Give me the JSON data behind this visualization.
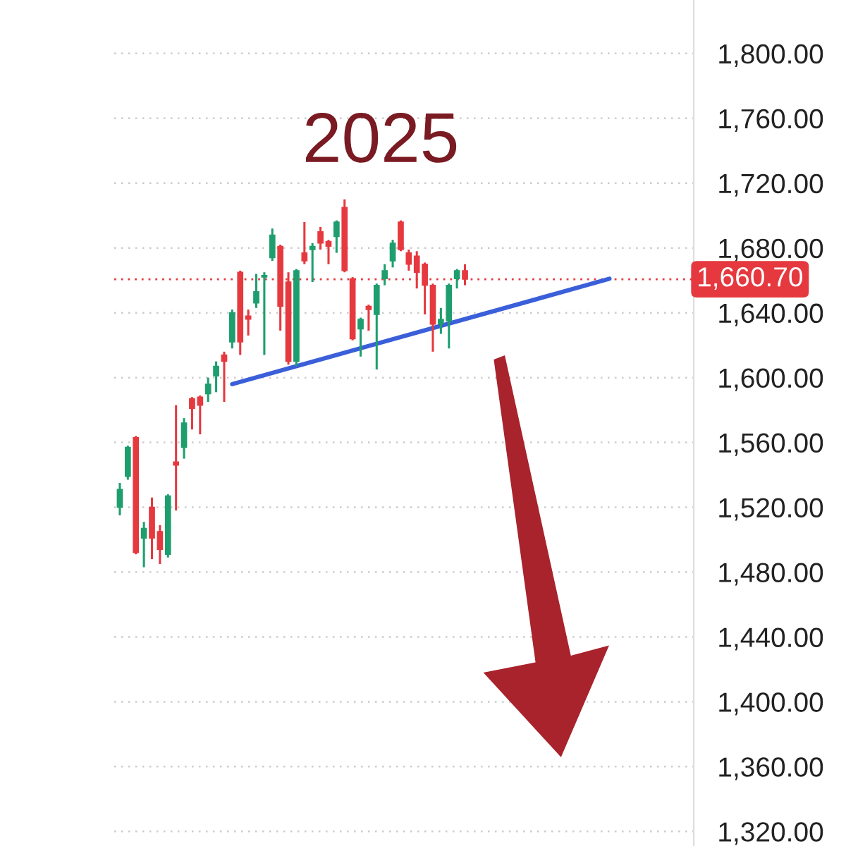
{
  "chart_data": {
    "type": "candlestick",
    "title": "2025",
    "categories": [
      null,
      null,
      null,
      null,
      null,
      null,
      null,
      null,
      null,
      null,
      null,
      null,
      null,
      null,
      null,
      null,
      null,
      null,
      null,
      null,
      null,
      null,
      null,
      null,
      null,
      null,
      null,
      null,
      null,
      null,
      null,
      null,
      null,
      null,
      null,
      null,
      null,
      null,
      null,
      null,
      null,
      null,
      null,
      null,
      null,
      null,
      null,
      null,
      null,
      null,
      null,
      null,
      null,
      null,
      null,
      null,
      null,
      null,
      null,
      null,
      null,
      null
    ],
    "ohlc": [
      [
        1520,
        1535,
        1515,
        1531
      ],
      [
        1539,
        1558,
        1537,
        1557
      ],
      [
        1563,
        1564,
        1491,
        1492
      ],
      [
        1501,
        1511,
        1483,
        1507
      ],
      [
        1520,
        1526,
        1488,
        1501
      ],
      [
        1505,
        1509,
        1485,
        1494
      ],
      [
        1491,
        1528,
        1489,
        1527
      ],
      [
        1548,
        1583,
        1518,
        1546
      ],
      [
        1557,
        1575,
        1550,
        1572
      ],
      [
        1587,
        1588,
        1568,
        1581
      ],
      [
        1588,
        1589,
        1565,
        1583
      ],
      [
        1590,
        1600,
        1585,
        1596
      ],
      [
        1601,
        1610,
        1591,
        1607
      ],
      [
        1614,
        1616,
        1585,
        1610
      ],
      [
        1622,
        1642,
        1618,
        1640
      ],
      [
        1665,
        1666,
        1614,
        1622
      ],
      [
        1638,
        1642,
        1626,
        1636
      ],
      [
        1646,
        1664,
        1643,
        1653
      ],
      [
        1662,
        1665,
        1614,
        1663
      ],
      [
        1674,
        1692,
        1672,
        1688
      ],
      [
        1681,
        1682,
        1629,
        1644
      ],
      [
        1659,
        1665,
        1608,
        1610
      ],
      [
        1610,
        1667,
        1607,
        1666
      ],
      [
        1677,
        1696,
        1670,
        1672
      ],
      [
        1679,
        1683,
        1659,
        1681
      ],
      [
        1690,
        1693,
        1679,
        1683
      ],
      [
        1684,
        1685,
        1670,
        1681
      ],
      [
        1687,
        1697,
        1677,
        1696
      ],
      [
        1705,
        1710,
        1665,
        1666
      ],
      [
        1661,
        1662,
        1623,
        1624
      ],
      [
        1630,
        1637,
        1613,
        1636
      ],
      [
        1644,
        1645,
        1629,
        1642
      ],
      [
        1639,
        1658,
        1605,
        1657
      ],
      [
        1661,
        1670,
        1657,
        1666
      ],
      [
        1672,
        1685,
        1668,
        1683
      ],
      [
        1696,
        1697,
        1678,
        1679
      ],
      [
        1677,
        1679,
        1666,
        1670
      ],
      [
        1675,
        1678,
        1655,
        1665
      ],
      [
        1670,
        1671,
        1639,
        1657
      ],
      [
        1657,
        1658,
        1616,
        1633
      ],
      [
        1633,
        1643,
        1627,
        1636
      ],
      [
        1635,
        1658,
        1618,
        1657
      ],
      [
        1661,
        1667,
        1655,
        1666
      ],
      [
        1666,
        1670,
        1657,
        1660.7
      ],
      null,
      null,
      null,
      null,
      null,
      null,
      null,
      null,
      null,
      null,
      null,
      null,
      null,
      null,
      null,
      null,
      null,
      null
    ],
    "colors": [
      "#1e9e6e",
      "#1e9e6e",
      "#e5393f",
      "#1e9e6e",
      "#e5393f",
      "#e5393f",
      "#1e9e6e",
      "#e5393f",
      "#1e9e6e",
      "#e5393f",
      "#e5393f",
      "#1e9e6e",
      "#1e9e6e",
      "#e5393f",
      "#1e9e6e",
      "#e5393f",
      "#e5393f",
      "#1e9e6e",
      "#1e9e6e",
      "#1e9e6e",
      "#e5393f",
      "#e5393f",
      "#1e9e6e",
      "#e5393f",
      "#1e9e6e",
      "#e5393f",
      "#e5393f",
      "#1e9e6e",
      "#e5393f",
      "#e5393f",
      "#1e9e6e",
      "#e5393f",
      "#1e9e6e",
      "#1e9e6e",
      "#1e9e6e",
      "#e5393f",
      "#e5393f",
      "#e5393f",
      "#e5393f",
      "#e5393f",
      "#1e9e6e",
      "#1e9e6e",
      "#1e9e6e",
      "#e5393f",
      null,
      null,
      null,
      null,
      null,
      null,
      null,
      null,
      null,
      null,
      null,
      null,
      null,
      null,
      null,
      null,
      null,
      null
    ],
    "series": [
      {
        "type": "line",
        "color": "#3a5fd9",
        "values": [
          null,
          null,
          null,
          null,
          null,
          null,
          null,
          null,
          null,
          null,
          null,
          null,
          null,
          null,
          1596,
          null,
          null,
          null,
          null,
          null,
          null,
          null,
          null,
          null,
          null,
          null,
          null,
          null,
          null,
          null,
          null,
          null,
          null,
          null,
          null,
          null,
          null,
          null,
          null,
          null,
          null,
          null,
          null,
          null,
          null,
          null,
          null,
          null,
          null,
          null,
          null,
          null,
          null,
          null,
          null,
          null,
          null,
          null,
          null,
          null,
          null,
          1661
        ]
      }
    ],
    "ylim": [
      1311,
      1833
    ],
    "yticks": [
      {
        "value": 1320,
        "label": "1,320.00"
      },
      {
        "value": 1360,
        "label": "1,360.00"
      },
      {
        "value": 1400,
        "label": "1,400.00"
      },
      {
        "value": 1440,
        "label": "1,440.00"
      },
      {
        "value": 1480,
        "label": "1,480.00"
      },
      {
        "value": 1520,
        "label": "1,520.00"
      },
      {
        "value": 1560,
        "label": "1,560.00"
      },
      {
        "value": 1600,
        "label": "1,600.00"
      },
      {
        "value": 1640,
        "label": "1,640.00"
      },
      {
        "value": 1680,
        "label": "1,680.00"
      },
      {
        "value": 1720,
        "label": "1,720.00"
      },
      {
        "value": 1760,
        "label": "1,760.00"
      },
      {
        "value": 1800,
        "label": "1,800.00"
      }
    ],
    "ref_lines": [
      {
        "axis": "y",
        "value": 1660.7,
        "label": "1,660.70",
        "color": "#e5393f",
        "line_style": "dotted"
      }
    ],
    "grid": "y"
  }
}
